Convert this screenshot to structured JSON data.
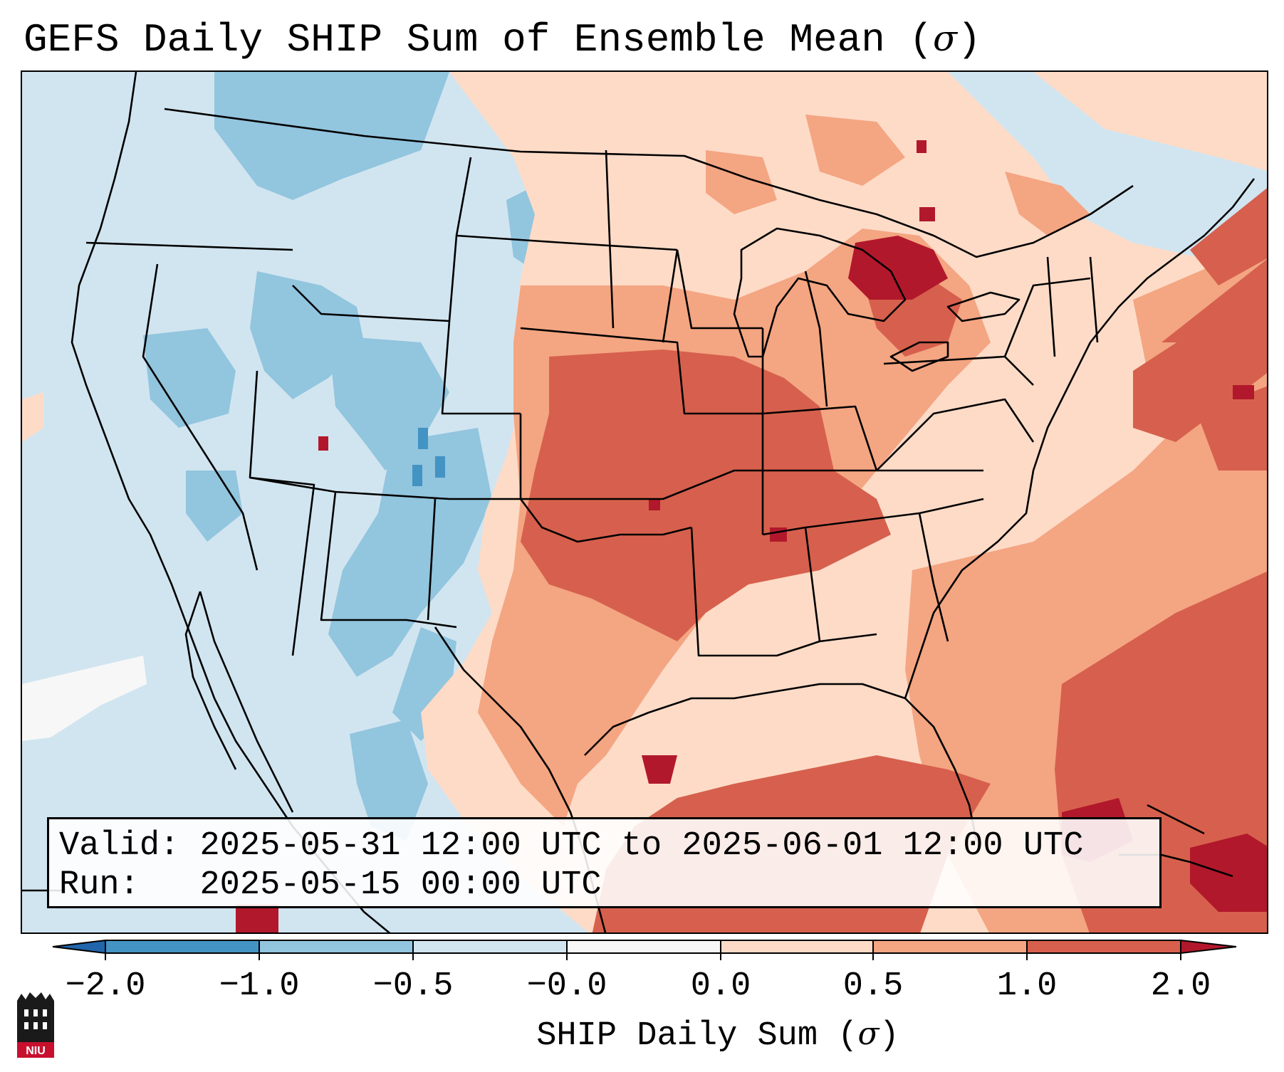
{
  "title": {
    "text": "GEFS Daily SHIP Sum of Ensemble Mean (",
    "sigma": "σ",
    "close": ")"
  },
  "info": {
    "valid_label": "Valid:",
    "valid_value": "2025-05-31 12:00 UTC to 2025-06-01 12:00 UTC",
    "run_label": "Run:",
    "run_value": "2025-05-15 00:00 UTC"
  },
  "colorbar": {
    "label_text": "SHIP Daily Sum (",
    "label_sigma": "σ",
    "label_close": ")",
    "ticks": [
      "−2.0",
      "−1.0",
      "−0.5",
      "−0.0",
      "0.0",
      "0.5",
      "1.0",
      "2.0"
    ],
    "colors": [
      "#2166ac",
      "#4393c3",
      "#92c5de",
      "#d1e5f0",
      "#f7f7f7",
      "#fddbc7",
      "#f4a582",
      "#d6604d",
      "#b2182b"
    ]
  },
  "logo": {
    "text": "NIU",
    "color": "#c8102e"
  }
}
